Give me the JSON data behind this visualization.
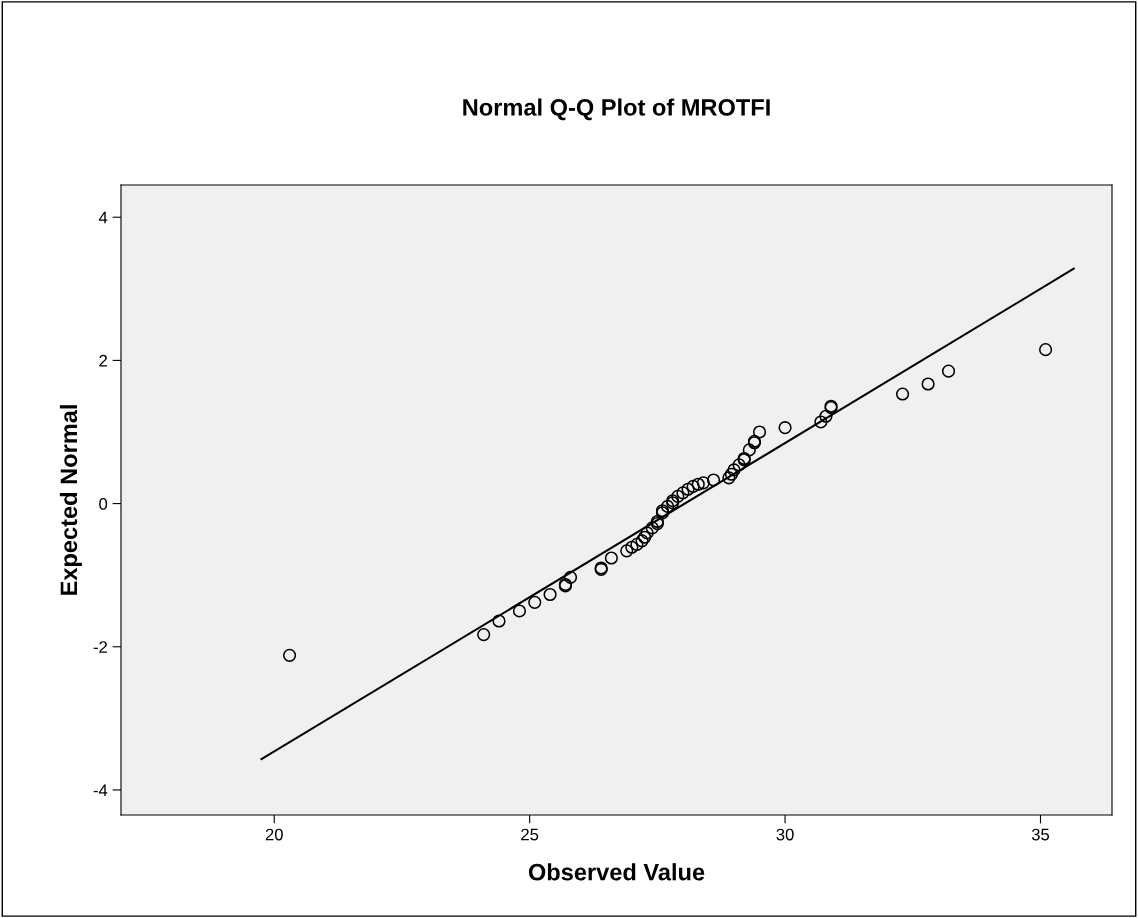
{
  "chart_data": {
    "type": "scatter",
    "title": "Normal Q-Q Plot of MROTFI",
    "xlabel": "Observed Value",
    "ylabel": "Expected Normal",
    "xlim": [
      17.0,
      36.4
    ],
    "ylim": [
      -4.35,
      4.45
    ],
    "xticks": [
      20,
      25,
      30,
      35
    ],
    "yticks": [
      -4,
      -2,
      0,
      2,
      4
    ],
    "grid": false,
    "series": [
      {
        "marker": "circle",
        "color": "#000000",
        "x": [
          20.3,
          24.1,
          24.4,
          24.8,
          25.1,
          25.4,
          25.7,
          25.7,
          25.8,
          26.4,
          26.4,
          26.6,
          26.9,
          27.0,
          27.1,
          27.2,
          27.25,
          27.3,
          27.4,
          27.5,
          27.5,
          27.6,
          27.6,
          27.7,
          27.8,
          27.8,
          27.9,
          28.0,
          28.1,
          28.2,
          28.3,
          28.4,
          28.6,
          28.9,
          28.95,
          29.0,
          29.1,
          29.2,
          29.2,
          29.3,
          29.4,
          29.4,
          29.5,
          30.0,
          30.7,
          30.8,
          30.9,
          30.9,
          32.3,
          32.8,
          33.2,
          35.1
        ],
        "values": [
          -2.12,
          -1.83,
          -1.64,
          -1.5,
          -1.38,
          -1.27,
          -1.15,
          -1.13,
          -1.03,
          -0.9,
          -0.92,
          -0.76,
          -0.66,
          -0.61,
          -0.57,
          -0.52,
          -0.47,
          -0.41,
          -0.34,
          -0.28,
          -0.25,
          -0.13,
          -0.1,
          -0.04,
          0.01,
          0.04,
          0.1,
          0.15,
          0.2,
          0.24,
          0.27,
          0.29,
          0.33,
          0.36,
          0.41,
          0.47,
          0.54,
          0.61,
          0.63,
          0.75,
          0.85,
          0.87,
          1.0,
          1.06,
          1.14,
          1.22,
          1.34,
          1.36,
          1.53,
          1.67,
          1.85,
          2.15
        ]
      },
      {
        "type": "line",
        "color": "#000000",
        "x": [
          19.75,
          35.65
        ],
        "values": [
          -3.57,
          3.28
        ],
        "line_style": "solid",
        "marker": "none"
      }
    ]
  }
}
